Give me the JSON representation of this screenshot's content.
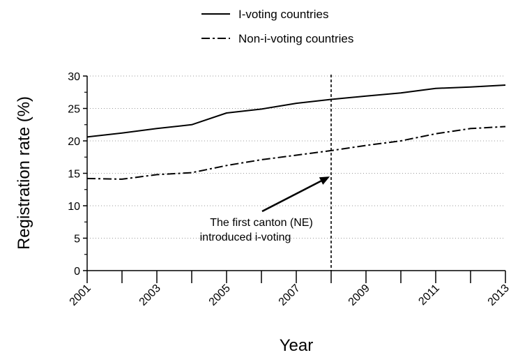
{
  "chart_data": {
    "type": "line",
    "title": "",
    "xlabel": "Year",
    "ylabel": "Registration rate (%)",
    "x": [
      2001,
      2002,
      2003,
      2004,
      2005,
      2006,
      2007,
      2008,
      2009,
      2010,
      2011,
      2012,
      2013
    ],
    "xticks": [
      "2001",
      "2003",
      "2005",
      "2007",
      "2009",
      "2011",
      "2013"
    ],
    "yticks": [
      "0",
      "5",
      "10",
      "15",
      "20",
      "25",
      "30"
    ],
    "xlim": [
      2001,
      2013
    ],
    "ylim": [
      0,
      30
    ],
    "grid": "horizontal dotted",
    "legend_position": "top-center",
    "series": [
      {
        "name": "I-voting countries",
        "line_style": "solid",
        "color": "#000000",
        "values": [
          20.6,
          21.2,
          21.9,
          22.5,
          24.3,
          24.9,
          25.8,
          26.4,
          26.9,
          27.4,
          28.1,
          28.3,
          28.6
        ]
      },
      {
        "name": "Non-i-voting countries",
        "line_style": "dash-dot",
        "color": "#000000",
        "values": [
          14.2,
          14.1,
          14.8,
          15.1,
          16.2,
          17.1,
          17.8,
          18.5,
          19.3,
          20.0,
          21.1,
          21.9,
          22.2
        ]
      }
    ],
    "vertical_line": {
      "x": 2008,
      "style": "dashed"
    },
    "annotation": {
      "lines": [
        "The first canton (NE)",
        "introduced i-voting"
      ],
      "arrow_target": {
        "x": 2008,
        "y": 14.5
      }
    }
  }
}
